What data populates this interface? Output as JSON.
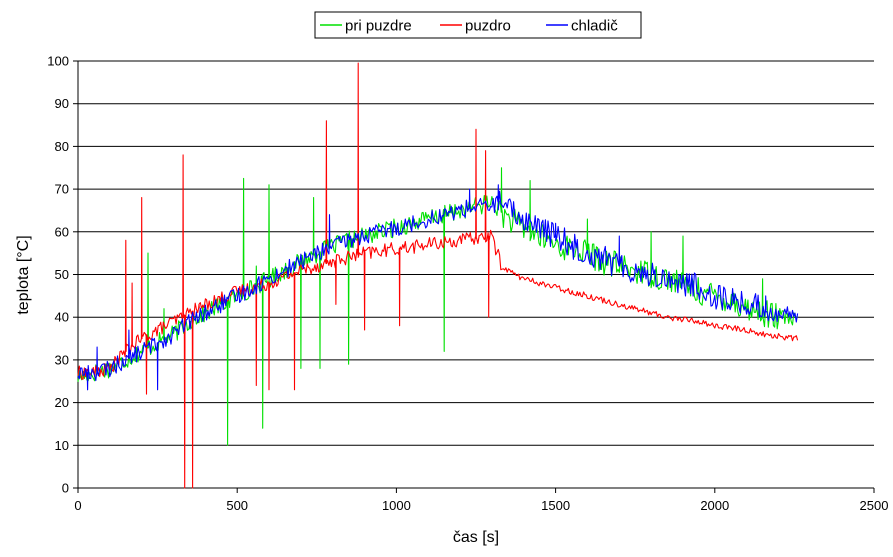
{
  "chart_data": {
    "type": "line",
    "title": "",
    "xlabel": "čas [s]",
    "ylabel": "teplota [°C]",
    "xlim": [
      0,
      2500
    ],
    "ylim": [
      0,
      100
    ],
    "x_ticks": [
      0,
      500,
      1000,
      1500,
      2000,
      2500
    ],
    "y_ticks": [
      0,
      10,
      20,
      30,
      40,
      50,
      60,
      70,
      80,
      90,
      100
    ],
    "grid": "horizontal",
    "legend_position": "top-center",
    "series": [
      {
        "name": "pri puzdre",
        "color": "#00e000",
        "x": [
          0,
          50,
          100,
          150,
          200,
          250,
          300,
          350,
          400,
          450,
          500,
          550,
          600,
          650,
          700,
          750,
          800,
          850,
          900,
          950,
          1000,
          1050,
          1100,
          1150,
          1200,
          1250,
          1300,
          1350,
          1400,
          1450,
          1500,
          1550,
          1600,
          1650,
          1700,
          1750,
          1800,
          1850,
          1900,
          1950,
          2000,
          2050,
          2100,
          2150,
          2200,
          2260
        ],
        "y": [
          26,
          27,
          28,
          30,
          32,
          34,
          36,
          39,
          41,
          43,
          45,
          47,
          49,
          51,
          53,
          55,
          56.5,
          58,
          59,
          60,
          61,
          62,
          63,
          64,
          65,
          66,
          67,
          63,
          61,
          59,
          57,
          56,
          55,
          53,
          52,
          51,
          50,
          49,
          48,
          46,
          45,
          44,
          42,
          41,
          40,
          39
        ],
        "spikes": [
          [
            220,
            55
          ],
          [
            270,
            42
          ],
          [
            470,
            10
          ],
          [
            520,
            72.5
          ],
          [
            560,
            52
          ],
          [
            580,
            14
          ],
          [
            600,
            71
          ],
          [
            700,
            28
          ],
          [
            740,
            68
          ],
          [
            760,
            28
          ],
          [
            850,
            29
          ],
          [
            1150,
            32
          ],
          [
            1330,
            75
          ],
          [
            1420,
            72
          ],
          [
            1600,
            63
          ],
          [
            1800,
            60
          ],
          [
            1900,
            59
          ],
          [
            2150,
            49
          ]
        ]
      },
      {
        "name": "puzdro",
        "color": "#ff0000",
        "x": [
          0,
          50,
          100,
          150,
          200,
          250,
          300,
          350,
          400,
          450,
          500,
          550,
          600,
          650,
          700,
          750,
          800,
          850,
          900,
          950,
          1000,
          1050,
          1100,
          1150,
          1200,
          1250,
          1300,
          1330,
          1350,
          1400,
          1450,
          1500,
          1550,
          1600,
          1650,
          1700,
          1750,
          1800,
          1850,
          1900,
          1950,
          2000,
          2050,
          2100,
          2150,
          2200,
          2260
        ],
        "y": [
          27,
          27,
          28,
          32,
          35,
          37,
          39,
          41,
          43,
          44.5,
          46,
          47,
          48,
          49.5,
          51,
          52,
          53,
          54,
          55,
          55.5,
          56,
          56.5,
          57,
          57.5,
          58,
          58.5,
          59,
          52,
          51,
          49,
          48,
          47,
          46,
          45,
          44,
          43,
          42,
          41,
          40,
          39.5,
          39,
          38,
          37.5,
          37,
          36,
          35.5,
          35
        ],
        "spikes": [
          [
            150,
            58
          ],
          [
            170,
            48
          ],
          [
            200,
            68
          ],
          [
            215,
            22
          ],
          [
            330,
            78
          ],
          [
            335,
            0
          ],
          [
            360,
            0
          ],
          [
            380,
            43
          ],
          [
            560,
            24
          ],
          [
            600,
            23
          ],
          [
            680,
            23
          ],
          [
            780,
            86
          ],
          [
            810,
            43
          ],
          [
            880,
            99.5
          ],
          [
            900,
            37
          ],
          [
            1010,
            38
          ],
          [
            1250,
            84
          ],
          [
            1280,
            79
          ],
          [
            1290,
            40
          ]
        ]
      },
      {
        "name": "chladič",
        "color": "#0000ff",
        "x": [
          0,
          50,
          100,
          150,
          200,
          250,
          300,
          350,
          400,
          450,
          500,
          550,
          600,
          650,
          700,
          750,
          800,
          850,
          900,
          950,
          1000,
          1050,
          1100,
          1150,
          1200,
          1250,
          1300,
          1320,
          1350,
          1400,
          1450,
          1500,
          1550,
          1600,
          1650,
          1700,
          1750,
          1800,
          1850,
          1900,
          1950,
          2000,
          2050,
          2100,
          2150,
          2200,
          2260
        ],
        "y": [
          27,
          27,
          28,
          30,
          32,
          34,
          36,
          39,
          41,
          43,
          45,
          47,
          49,
          51,
          53,
          55,
          56.5,
          58,
          59,
          60,
          61,
          62,
          63,
          64,
          65,
          66,
          66,
          67,
          65,
          63,
          61,
          59,
          57,
          55,
          54,
          52,
          51,
          50,
          49,
          48,
          47,
          45,
          44,
          43,
          42,
          41,
          40
        ],
        "spikes": [
          [
            30,
            23
          ],
          [
            60,
            33
          ],
          [
            160,
            37
          ],
          [
            250,
            23
          ],
          [
            790,
            64
          ],
          [
            1230,
            70
          ],
          [
            1320,
            71
          ],
          [
            1500,
            62
          ],
          [
            1700,
            59
          ],
          [
            2160,
            45
          ]
        ]
      }
    ]
  }
}
